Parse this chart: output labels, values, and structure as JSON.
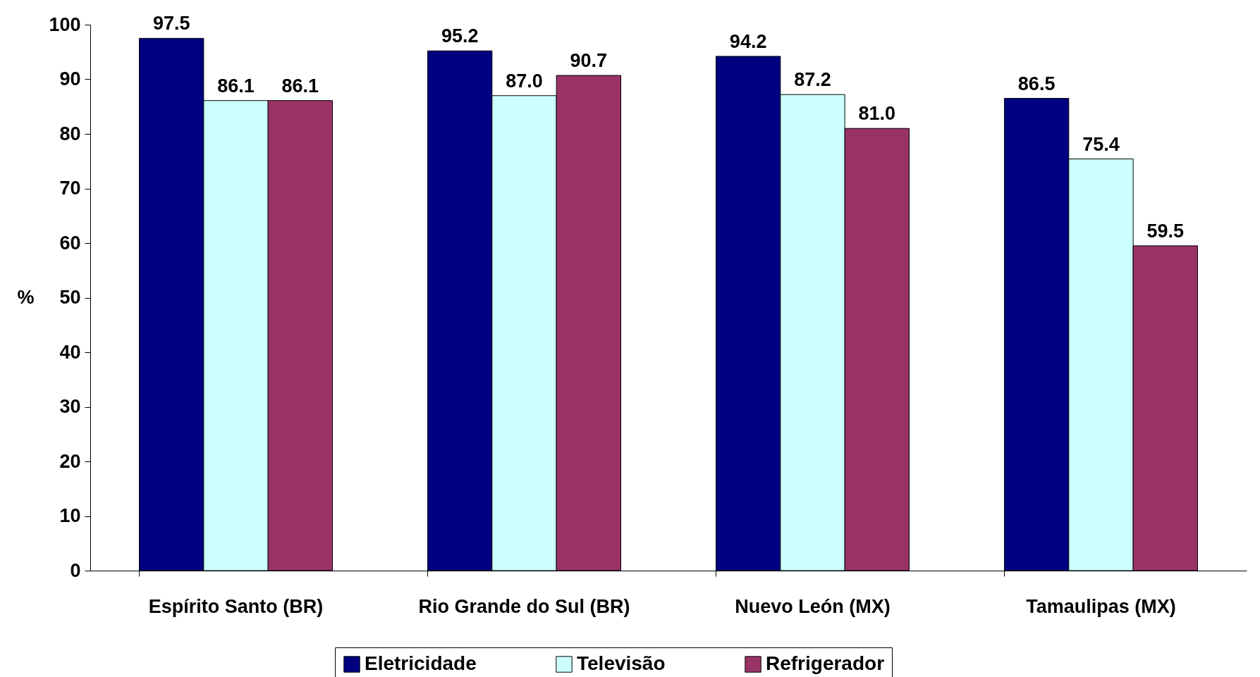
{
  "chart_data": {
    "type": "bar",
    "ylabel": "%",
    "categories": [
      "Espírito Santo (BR)",
      "Rio Grande do Sul (BR)",
      "Nuevo León (MX)",
      "Tamaulipas (MX)"
    ],
    "series": [
      {
        "name": "Eletricidade",
        "color": "#000080",
        "values": [
          97.5,
          95.2,
          94.2,
          86.5
        ],
        "value_labels": [
          "97.5",
          "95.2",
          "94.2",
          "86.5"
        ]
      },
      {
        "name": "Televisão",
        "color": "#ccffff",
        "values": [
          86.1,
          87.0,
          87.2,
          75.4
        ],
        "value_labels": [
          "86.1",
          "87.0",
          "87.2",
          "75.4"
        ]
      },
      {
        "name": "Refrigerador",
        "color": "#993366",
        "values": [
          86.1,
          90.7,
          81.0,
          59.5
        ],
        "value_labels": [
          "86.1",
          "90.7",
          "81.0",
          "59.5"
        ]
      }
    ],
    "ylim": [
      0,
      100
    ],
    "yticks": [
      0,
      10,
      20,
      30,
      40,
      50,
      60,
      70,
      80,
      90,
      100
    ],
    "legend": "bottom",
    "grid": false
  }
}
